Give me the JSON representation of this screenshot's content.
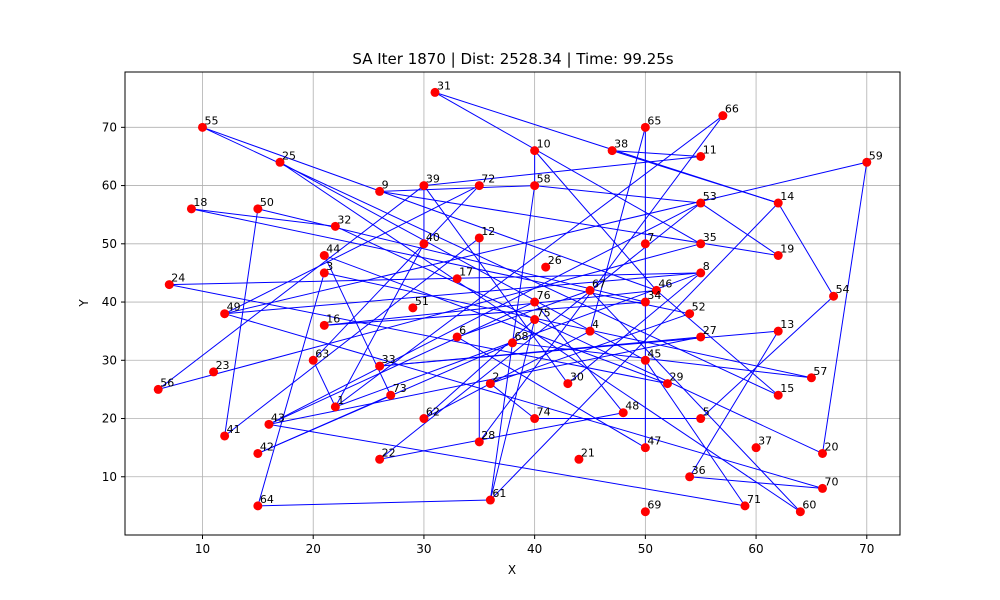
{
  "chart_data": {
    "type": "scatter",
    "title": "SA Iter 1870 | Dist: 2528.34 | Time: 99.25s",
    "xlabel": "X",
    "ylabel": "Y",
    "xlim": [
      3,
      73
    ],
    "ylim": [
      0,
      79.5
    ],
    "xticks": [
      10,
      20,
      30,
      40,
      50,
      60,
      70
    ],
    "yticks": [
      10,
      20,
      30,
      40,
      50,
      60,
      70
    ],
    "grid": true,
    "point_color": "#ff0000",
    "route_color": "#0000ff",
    "cities": [
      {
        "id": "1",
        "x": 22,
        "y": 22
      },
      {
        "id": "2",
        "x": 36,
        "y": 26
      },
      {
        "id": "3",
        "x": 21,
        "y": 45
      },
      {
        "id": "4",
        "x": 45,
        "y": 35
      },
      {
        "id": "5",
        "x": 55,
        "y": 20
      },
      {
        "id": "6",
        "x": 33,
        "y": 34
      },
      {
        "id": "7",
        "x": 50,
        "y": 50
      },
      {
        "id": "8",
        "x": 55,
        "y": 45
      },
      {
        "id": "9",
        "x": 26,
        "y": 59
      },
      {
        "id": "10",
        "x": 40,
        "y": 66
      },
      {
        "id": "11",
        "x": 55,
        "y": 65
      },
      {
        "id": "12",
        "x": 35,
        "y": 51
      },
      {
        "id": "13",
        "x": 62,
        "y": 35
      },
      {
        "id": "14",
        "x": 62,
        "y": 57
      },
      {
        "id": "15",
        "x": 62,
        "y": 24
      },
      {
        "id": "16",
        "x": 21,
        "y": 36
      },
      {
        "id": "17",
        "x": 33,
        "y": 44
      },
      {
        "id": "18",
        "x": 9,
        "y": 56
      },
      {
        "id": "19",
        "x": 62,
        "y": 48
      },
      {
        "id": "20",
        "x": 66,
        "y": 14
      },
      {
        "id": "21",
        "x": 44,
        "y": 13
      },
      {
        "id": "22",
        "x": 26,
        "y": 13
      },
      {
        "id": "23",
        "x": 11,
        "y": 28
      },
      {
        "id": "24",
        "x": 7,
        "y": 43
      },
      {
        "id": "25",
        "x": 17,
        "y": 64
      },
      {
        "id": "26",
        "x": 41,
        "y": 46
      },
      {
        "id": "27",
        "x": 55,
        "y": 34
      },
      {
        "id": "28",
        "x": 35,
        "y": 16
      },
      {
        "id": "29",
        "x": 52,
        "y": 26
      },
      {
        "id": "30",
        "x": 43,
        "y": 26
      },
      {
        "id": "31",
        "x": 31,
        "y": 76
      },
      {
        "id": "32",
        "x": 22,
        "y": 53
      },
      {
        "id": "33",
        "x": 26,
        "y": 29
      },
      {
        "id": "34",
        "x": 50,
        "y": 40
      },
      {
        "id": "35",
        "x": 55,
        "y": 50
      },
      {
        "id": "36",
        "x": 54,
        "y": 10
      },
      {
        "id": "37",
        "x": 60,
        "y": 15
      },
      {
        "id": "38",
        "x": 47,
        "y": 66
      },
      {
        "id": "39",
        "x": 30,
        "y": 60
      },
      {
        "id": "40",
        "x": 30,
        "y": 50
      },
      {
        "id": "41",
        "x": 12,
        "y": 17
      },
      {
        "id": "42",
        "x": 15,
        "y": 14
      },
      {
        "id": "43",
        "x": 16,
        "y": 19
      },
      {
        "id": "44",
        "x": 21,
        "y": 48
      },
      {
        "id": "45",
        "x": 50,
        "y": 30
      },
      {
        "id": "46",
        "x": 51,
        "y": 42
      },
      {
        "id": "47",
        "x": 50,
        "y": 15
      },
      {
        "id": "48",
        "x": 48,
        "y": 21
      },
      {
        "id": "49",
        "x": 12,
        "y": 38
      },
      {
        "id": "50",
        "x": 15,
        "y": 56
      },
      {
        "id": "51",
        "x": 29,
        "y": 39
      },
      {
        "id": "52",
        "x": 54,
        "y": 38
      },
      {
        "id": "53",
        "x": 55,
        "y": 57
      },
      {
        "id": "54",
        "x": 67,
        "y": 41
      },
      {
        "id": "55",
        "x": 10,
        "y": 70
      },
      {
        "id": "56",
        "x": 6,
        "y": 25
      },
      {
        "id": "57",
        "x": 65,
        "y": 27
      },
      {
        "id": "58",
        "x": 40,
        "y": 60
      },
      {
        "id": "59",
        "x": 70,
        "y": 64
      },
      {
        "id": "60",
        "x": 64,
        "y": 4
      },
      {
        "id": "61",
        "x": 36,
        "y": 6
      },
      {
        "id": "62",
        "x": 30,
        "y": 20
      },
      {
        "id": "63",
        "x": 20,
        "y": 30
      },
      {
        "id": "64",
        "x": 15,
        "y": 5
      },
      {
        "id": "65",
        "x": 50,
        "y": 70
      },
      {
        "id": "66",
        "x": 57,
        "y": 72
      },
      {
        "id": "67",
        "x": 45,
        "y": 42
      },
      {
        "id": "68",
        "x": 38,
        "y": 33
      },
      {
        "id": "69",
        "x": 50,
        "y": 4
      },
      {
        "id": "70",
        "x": 66,
        "y": 8
      },
      {
        "id": "71",
        "x": 59,
        "y": 5
      },
      {
        "id": "72",
        "x": 35,
        "y": 60
      },
      {
        "id": "73",
        "x": 27,
        "y": 24
      },
      {
        "id": "74",
        "x": 40,
        "y": 20
      },
      {
        "id": "75",
        "x": 40,
        "y": 37
      },
      {
        "id": "76",
        "x": 40,
        "y": 40
      }
    ],
    "route": [
      "31",
      "35",
      "56",
      "39",
      "30",
      "8",
      "1",
      "63",
      "72",
      "49",
      "70",
      "36",
      "13",
      "33",
      "27",
      "43",
      "53",
      "58",
      "61",
      "75",
      "62",
      "4",
      "65",
      "47",
      "6",
      "67",
      "60",
      "25",
      "45",
      "71",
      "43",
      "76",
      "48",
      "22",
      "53",
      "19",
      "9",
      "58",
      "10",
      "46",
      "15",
      "55",
      "46",
      "16",
      "34",
      "50",
      "41",
      "12",
      "28",
      "66",
      "1",
      "40",
      "39",
      "11",
      "38",
      "14",
      "54",
      "5",
      "74",
      "2",
      "52",
      "18",
      "32",
      "20",
      "59",
      "49",
      "8",
      "24",
      "29",
      "44",
      "73",
      "42",
      "68",
      "57",
      "3",
      "64",
      "61",
      "14",
      "31"
    ]
  }
}
